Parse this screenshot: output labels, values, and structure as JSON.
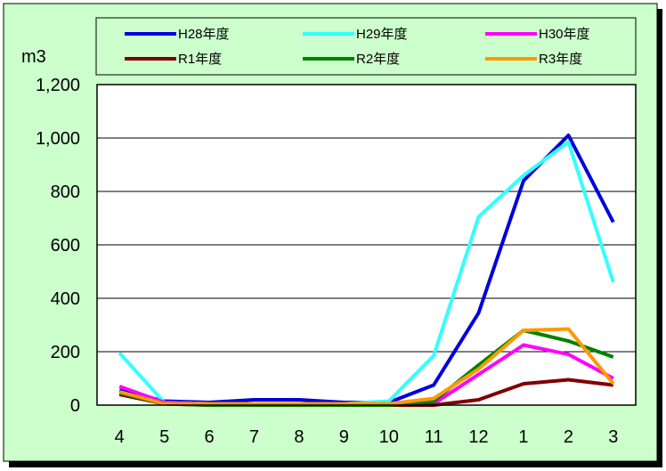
{
  "chart_data": {
    "type": "line",
    "ylabel": "m3",
    "categories": [
      "4",
      "5",
      "6",
      "7",
      "8",
      "9",
      "10",
      "11",
      "12",
      "1",
      "2",
      "3"
    ],
    "y_ticks": [
      "0",
      "200",
      "400",
      "600",
      "800",
      "1,000",
      "1,200"
    ],
    "ylim": [
      0,
      1200
    ],
    "grid": true,
    "legend_position": "top",
    "series": [
      {
        "name": "H28年度",
        "color": "#0000dd",
        "values": [
          55,
          15,
          10,
          20,
          20,
          10,
          10,
          75,
          345,
          840,
          1010,
          685
        ]
      },
      {
        "name": "H29年度",
        "color": "#33ffff",
        "values": [
          195,
          10,
          5,
          5,
          5,
          5,
          15,
          185,
          705,
          860,
          985,
          460
        ]
      },
      {
        "name": "H30年度",
        "color": "#ff00ff",
        "values": [
          70,
          10,
          5,
          5,
          5,
          5,
          5,
          5,
          115,
          225,
          190,
          100
        ]
      },
      {
        "name": "R1年度",
        "color": "#800000",
        "values": [
          40,
          5,
          0,
          0,
          0,
          0,
          0,
          0,
          20,
          80,
          95,
          75
        ]
      },
      {
        "name": "R2年度",
        "color": "#008000",
        "values": [
          45,
          5,
          0,
          0,
          0,
          0,
          0,
          15,
          150,
          280,
          240,
          180
        ]
      },
      {
        "name": "R3年度",
        "color": "#ff9900",
        "values": [
          50,
          5,
          5,
          5,
          5,
          5,
          5,
          25,
          135,
          280,
          285,
          80
        ]
      }
    ]
  }
}
